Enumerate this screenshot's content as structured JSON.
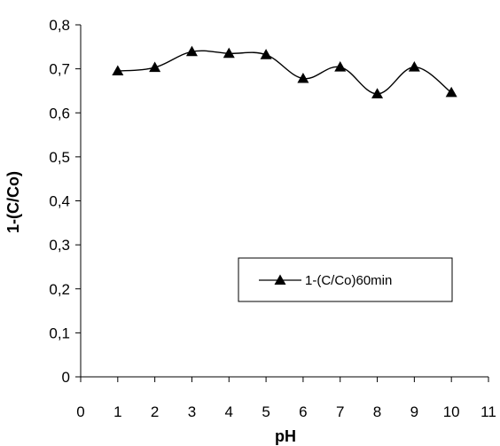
{
  "chart_data": {
    "type": "line",
    "xlabel": "pH",
    "ylabel": "1-(C/Co)",
    "xlim": [
      0,
      11
    ],
    "ylim": [
      0,
      0.8
    ],
    "x_ticks": [
      {
        "value": 0,
        "label": "0"
      },
      {
        "value": 1,
        "label": "1"
      },
      {
        "value": 2,
        "label": "2"
      },
      {
        "value": 3,
        "label": "3"
      },
      {
        "value": 4,
        "label": "4"
      },
      {
        "value": 5,
        "label": "5"
      },
      {
        "value": 6,
        "label": "6"
      },
      {
        "value": 7,
        "label": "7"
      },
      {
        "value": 8,
        "label": "8"
      },
      {
        "value": 9,
        "label": "9"
      },
      {
        "value": 10,
        "label": "10"
      },
      {
        "value": 11,
        "label": "11"
      }
    ],
    "y_ticks": [
      {
        "value": 0,
        "label": "0"
      },
      {
        "value": 0.1,
        "label": "0,1"
      },
      {
        "value": 0.2,
        "label": "0,2"
      },
      {
        "value": 0.3,
        "label": "0,3"
      },
      {
        "value": 0.4,
        "label": "0,4"
      },
      {
        "value": 0.5,
        "label": "0,5"
      },
      {
        "value": 0.6,
        "label": "0,6"
      },
      {
        "value": 0.7,
        "label": "0,7"
      },
      {
        "value": 0.8,
        "label": "0,8"
      }
    ],
    "grid": false,
    "legend_position": "center-right",
    "series": [
      {
        "name": "1-(C/Co)60min",
        "color": "#000000",
        "marker": "triangle",
        "x": [
          1,
          2,
          3,
          4,
          5,
          6,
          7,
          8,
          9,
          10
        ],
        "y": [
          0.695,
          0.703,
          0.739,
          0.735,
          0.732,
          0.678,
          0.704,
          0.643,
          0.704,
          0.646
        ]
      }
    ]
  }
}
